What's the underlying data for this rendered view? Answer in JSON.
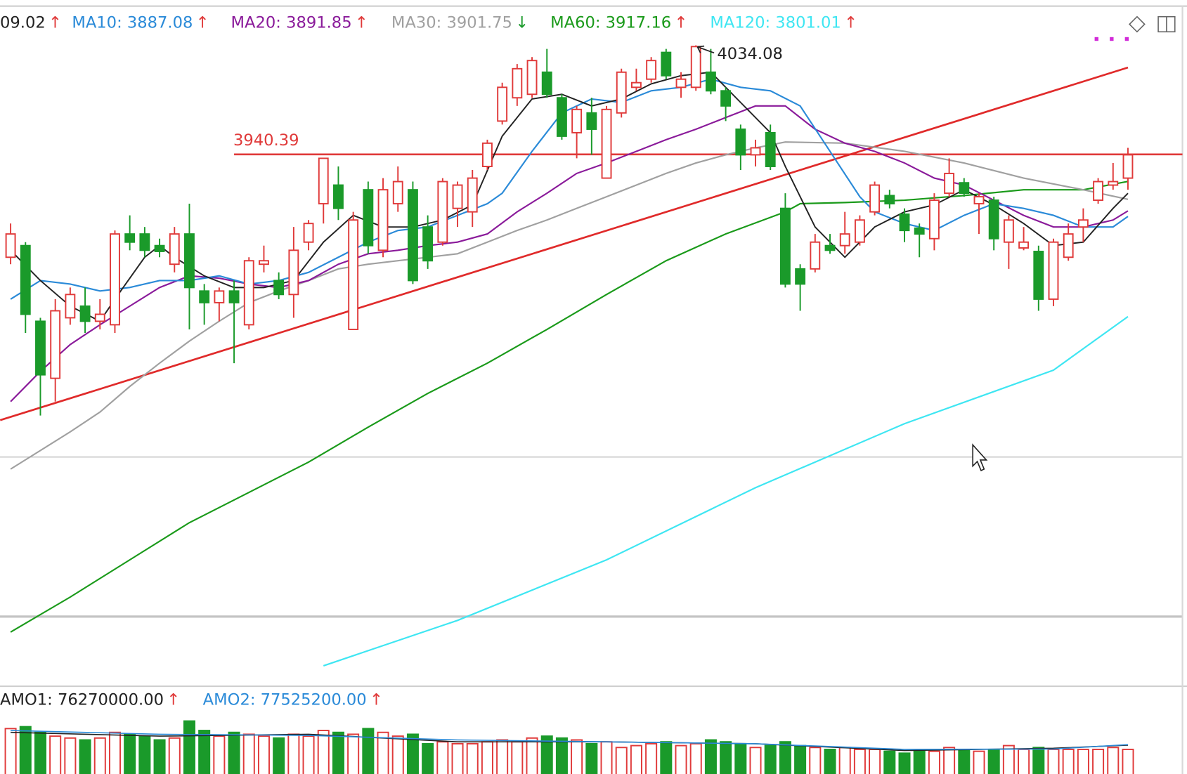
{
  "chart_data": [
    {
      "type": "candlestick",
      "ylim": [
        3484.75,
        4063.25
      ],
      "up_color": "#e03a3a",
      "down_color": "#1a9a2a",
      "open": [
        3852,
        3862,
        3797,
        3748,
        3800,
        3810,
        3797,
        3794,
        3872,
        3872,
        3862,
        3846,
        3872,
        3823,
        3813,
        3823,
        3794,
        3846,
        3832,
        3820,
        3865,
        3898,
        3914,
        3790,
        3910,
        3858,
        3898,
        3910,
        3878,
        3865,
        3894,
        3891,
        3930,
        3969,
        3989,
        3992,
        4011,
        3989,
        3959,
        3976,
        3920,
        3976,
        3998,
        4005,
        4028,
        3998,
        3998,
        4011,
        3995,
        3962,
        3940,
        3959,
        3894,
        3842,
        3842,
        3862,
        3862,
        3865,
        3891,
        3905,
        3889,
        3877,
        3868,
        3907,
        3916,
        3898,
        3901,
        3865,
        3860,
        3857,
        3816,
        3852,
        3878,
        3901,
        3914,
        3920
      ],
      "high": [
        3881,
        3865,
        3800,
        3816,
        3826,
        3826,
        3816,
        3875,
        3888,
        3878,
        3868,
        3878,
        3898,
        3829,
        3826,
        3832,
        3852,
        3862,
        3839,
        3878,
        3884,
        3937,
        3930,
        3891,
        3917,
        3920,
        3930,
        3917,
        3888,
        3920,
        3917,
        3927,
        3953,
        4002,
        4018,
        4024,
        4031,
        3992,
        3982,
        3989,
        3982,
        4014,
        4014,
        4024,
        4031,
        4011,
        4034.08,
        4031,
        3998,
        3966,
        3953,
        3966,
        3907,
        3846,
        3872,
        3872,
        3891,
        3888,
        3917,
        3910,
        3894,
        3881,
        3907,
        3937,
        3920,
        3907,
        3904,
        3888,
        3878,
        3862,
        3868,
        3881,
        3894,
        3920,
        3933,
        3946
      ],
      "low": [
        3846,
        3787,
        3716,
        3728,
        3794,
        3787,
        3790,
        3787,
        3858,
        3852,
        3852,
        3839,
        3790,
        3794,
        3797,
        3761,
        3790,
        3839,
        3816,
        3800,
        3858,
        3881,
        3884,
        3790,
        3855,
        3852,
        3891,
        3829,
        3842,
        3862,
        3878,
        3878,
        3927,
        3966,
        3982,
        3989,
        3989,
        3953,
        3937,
        3940,
        3920,
        3972,
        3995,
        4002,
        4005,
        3989,
        3995,
        3992,
        3969,
        3927,
        3930,
        3927,
        3826,
        3806,
        3839,
        3855,
        3855,
        3862,
        3888,
        3894,
        3865,
        3852,
        3858,
        3904,
        3904,
        3872,
        3858,
        3842,
        3858,
        3806,
        3810,
        3849,
        3865,
        3898,
        3910,
        3910
      ],
      "close": [
        3872,
        3803,
        3751,
        3806,
        3820,
        3797,
        3803,
        3872,
        3865,
        3858,
        3857,
        3872,
        3826,
        3813,
        3823,
        3813,
        3849,
        3849,
        3820,
        3858,
        3881,
        3937,
        3894,
        3884,
        3862,
        3910,
        3917,
        3832,
        3849,
        3917,
        3914,
        3920,
        3950,
        3998,
        4014,
        4021,
        3992,
        3956,
        3979,
        3962,
        3979,
        4011,
        4002,
        4021,
        4008,
        4005,
        4033,
        3995,
        3982,
        3940,
        3946,
        3930,
        3829,
        3829,
        3865,
        3858,
        3872,
        3884,
        3914,
        3898,
        3875,
        3872,
        3901,
        3924,
        3907,
        3904,
        3868,
        3884,
        3865,
        3816,
        3865,
        3872,
        3884,
        3917,
        3917,
        3940
      ],
      "series": [
        {
          "name": "09.02",
          "trend": "↑",
          "trend_color": "#e03a3a",
          "color": "#222222",
          "x": [
            0,
            2,
            4,
            6,
            7,
            9,
            10,
            11,
            13,
            15,
            17,
            19,
            21,
            23,
            25,
            27,
            29,
            31,
            33,
            35,
            37,
            39,
            41,
            43,
            45,
            47,
            49,
            51,
            52,
            54,
            56,
            58,
            60,
            62,
            64,
            66,
            68,
            70,
            72,
            74,
            75
          ],
          "values": [
            3858,
            3832,
            3810,
            3797,
            3816,
            3852,
            3862,
            3852,
            3836,
            3826,
            3826,
            3832,
            3865,
            3888,
            3878,
            3878,
            3884,
            3897,
            3956,
            3988,
            3992,
            3982,
            3988,
            4001,
            4008,
            4011,
            3985,
            3959,
            3930,
            3878,
            3852,
            3878,
            3891,
            3897,
            3910,
            3897,
            3881,
            3862,
            3865,
            3894,
            3907
          ]
        },
        {
          "name": "MA10: 3887.08",
          "trend": "↑",
          "trend_color": "#e03a3a",
          "color": "#2a8ad8",
          "x": [
            0,
            2,
            4,
            6,
            8,
            10,
            12,
            14,
            16,
            18,
            20,
            22,
            24,
            26,
            28,
            30,
            32,
            33,
            35,
            37,
            39,
            41,
            43,
            45,
            47,
            49,
            51,
            53,
            55,
            57,
            58,
            60,
            62,
            64,
            66,
            68,
            70,
            72,
            74,
            75
          ],
          "values": [
            3816,
            3832,
            3829,
            3823,
            3826,
            3832,
            3832,
            3836,
            3829,
            3832,
            3839,
            3852,
            3865,
            3875,
            3878,
            3888,
            3898,
            3907,
            3943,
            3976,
            3988,
            3985,
            3995,
            3998,
            4005,
            3998,
            3995,
            3982,
            3943,
            3904,
            3891,
            3881,
            3875,
            3888,
            3898,
            3894,
            3888,
            3878,
            3878,
            3887.08
          ]
        },
        {
          "name": "MA20: 3891.85",
          "trend": "↑",
          "trend_color": "#e03a3a",
          "color": "#8a1a9a",
          "x": [
            0,
            2,
            4,
            6,
            8,
            10,
            12,
            14,
            16,
            18,
            20,
            22,
            24,
            26,
            28,
            30,
            32,
            34,
            36,
            38,
            40,
            42,
            44,
            46,
            48,
            50,
            52,
            54,
            56,
            58,
            60,
            62,
            64,
            66,
            68,
            70,
            72,
            74,
            75
          ],
          "values": [
            3728,
            3754,
            3777,
            3794,
            3810,
            3826,
            3836,
            3834,
            3829,
            3826,
            3832,
            3846,
            3855,
            3858,
            3862,
            3865,
            3872,
            3891,
            3907,
            3924,
            3933,
            3943,
            3953,
            3962,
            3972,
            3982,
            3982,
            3962,
            3950,
            3943,
            3933,
            3920,
            3914,
            3901,
            3888,
            3878,
            3878,
            3884,
            3891.85
          ]
        },
        {
          "name": "MA30: 3901.75",
          "trend": "↓",
          "trend_color": "#1a9a2a",
          "color": "#a0a0a0",
          "x": [
            0,
            2,
            4,
            6,
            8,
            10,
            12,
            14,
            16,
            18,
            20,
            22,
            24,
            26,
            28,
            30,
            32,
            34,
            36,
            38,
            40,
            42,
            44,
            46,
            48,
            50,
            52,
            56,
            60,
            64,
            68,
            72,
            75
          ],
          "values": [
            3670,
            3686,
            3702,
            3719,
            3741,
            3761,
            3780,
            3797,
            3813,
            3823,
            3832,
            3842,
            3846,
            3849,
            3852,
            3855,
            3865,
            3875,
            3884,
            3894,
            3904,
            3914,
            3924,
            3933,
            3940,
            3946,
            3951,
            3950,
            3943,
            3933,
            3920,
            3910,
            3901.75
          ]
        },
        {
          "name": "MA60: 3917.16",
          "trend": "↑",
          "trend_color": "#e03a3a",
          "color": "#1a9a1a",
          "x": [
            0,
            4,
            8,
            12,
            16,
            20,
            24,
            28,
            32,
            36,
            40,
            44,
            48,
            52,
            53,
            56,
            60,
            64,
            68,
            72,
            75
          ],
          "values": [
            3530,
            3560,
            3592,
            3624,
            3650,
            3676,
            3706,
            3735,
            3761,
            3790,
            3820,
            3849,
            3872,
            3891,
            3898,
            3899,
            3901,
            3905,
            3910,
            3910,
            3917.16
          ]
        },
        {
          "name": "MA120: 3801.01",
          "trend": "↑",
          "trend_color": "#e03a3a",
          "color": "#3ee6f2",
          "x": [
            21,
            30,
            40,
            50,
            60,
            70,
            75
          ],
          "values": [
            3501,
            3540,
            3592,
            3654,
            3709,
            3755,
            3801.01
          ]
        }
      ],
      "hline": {
        "value": 3940.39,
        "label": "3940.39",
        "x": 15,
        "color": "#e03a3a"
      },
      "trendline": {
        "x": [
          -0.7,
          75
        ],
        "values": [
          3712,
          4015
        ],
        "color": "#e02a2a"
      },
      "annotation": {
        "label": "4034.08",
        "value": 4034.08,
        "x": 46
      }
    },
    {
      "type": "bar",
      "ylim": [
        0,
        140000000
      ],
      "values": [
        120000000,
        125000000,
        110000000,
        100000000,
        95000000,
        90000000,
        95000000,
        110000000,
        105000000,
        100000000,
        90000000,
        95000000,
        140000000,
        115000000,
        100000000,
        110000000,
        105000000,
        100000000,
        95000000,
        105000000,
        100000000,
        115000000,
        110000000,
        105000000,
        120000000,
        110000000,
        100000000,
        105000000,
        80000000,
        85000000,
        80000000,
        80000000,
        85000000,
        90000000,
        85000000,
        95000000,
        100000000,
        95000000,
        90000000,
        80000000,
        85000000,
        70000000,
        75000000,
        80000000,
        85000000,
        75000000,
        80000000,
        90000000,
        85000000,
        80000000,
        70000000,
        75000000,
        85000000,
        75000000,
        70000000,
        65000000,
        70000000,
        65000000,
        65000000,
        60000000,
        55000000,
        60000000,
        60000000,
        70000000,
        65000000,
        60000000,
        65000000,
        75000000,
        65000000,
        70000000,
        65000000,
        65000000,
        65000000,
        65000000,
        70000000,
        65000000
      ],
      "series": [
        {
          "name": "AMO1: 76270000.00",
          "trend": "↑",
          "trend_color": "#e03a3a",
          "color": "#222222",
          "x": [
            0,
            10,
            20,
            30,
            40,
            50,
            60,
            70,
            75
          ],
          "values": [
            110000000,
            100000000,
            105000000,
            85000000,
            85000000,
            80000000,
            62000000,
            68000000,
            76270000
          ]
        },
        {
          "name": "AMO2: 77525200.00",
          "trend": "↑",
          "trend_color": "#e03a3a",
          "color": "#2a8ad8",
          "x": [
            0,
            10,
            20,
            30,
            40,
            50,
            60,
            70,
            75
          ],
          "values": [
            115000000,
            105000000,
            102000000,
            90000000,
            85000000,
            80000000,
            65000000,
            66000000,
            77525200
          ]
        }
      ]
    }
  ]
}
